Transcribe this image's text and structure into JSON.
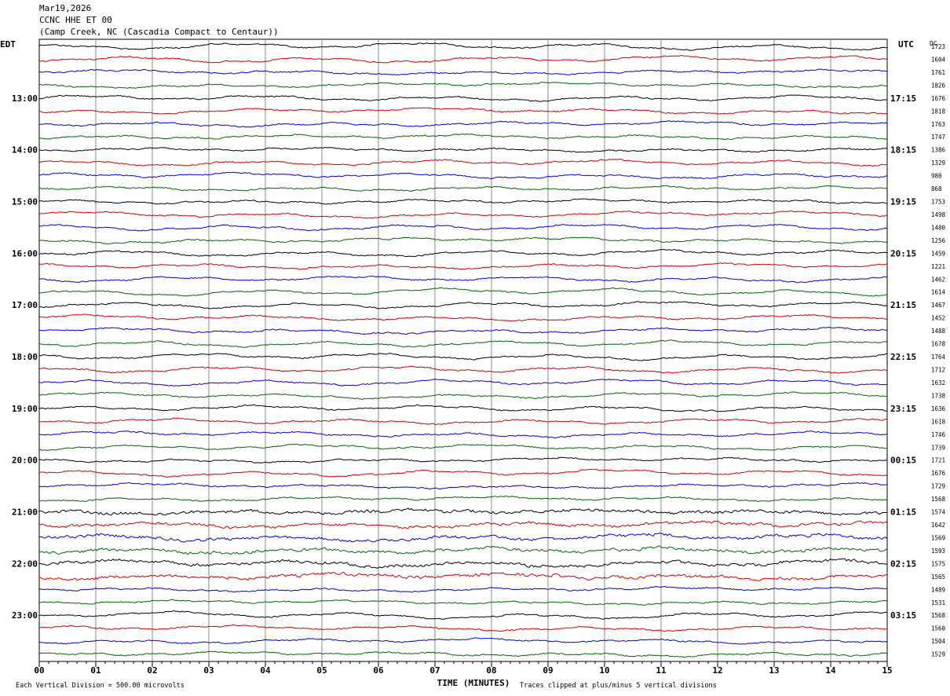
{
  "header": {
    "date": "Mar19,2026",
    "station": "CCNC HHE ET 00",
    "location": "(Camp Creek, NC (Cascadia Compact to Centaur))"
  },
  "chart_data": {
    "type": "line",
    "title": "CCNC HHE ET 00",
    "xlabel": "TIME (MINUTES)",
    "x_ticks": [
      "00",
      "01",
      "02",
      "03",
      "04",
      "05",
      "06",
      "07",
      "08",
      "09",
      "10",
      "11",
      "12",
      "13",
      "14",
      "15"
    ],
    "xlim": [
      0,
      15
    ],
    "left_axis_label": "EDT",
    "right_axis_label": "UTC",
    "dc_label": "DC",
    "left_time_labels": [
      "13:00",
      "14:00",
      "15:00",
      "16:00",
      "17:00",
      "18:00",
      "19:00",
      "20:00",
      "21:00",
      "22:00",
      "23:00"
    ],
    "right_time_labels": [
      "17:15",
      "18:15",
      "19:15",
      "20:15",
      "21:15",
      "22:15",
      "23:15",
      "00:15",
      "01:15",
      "02:15",
      "03:15"
    ],
    "dc_offsets": [
      1723,
      1604,
      1761,
      1826,
      1676,
      1818,
      1763,
      1747,
      1386,
      1329,
      980,
      868,
      1753,
      1498,
      1480,
      1256,
      1459,
      1221,
      1462,
      1614,
      1467,
      1452,
      1488,
      1678,
      1764,
      1712,
      1632,
      1738,
      1636,
      1618,
      1746,
      1739,
      1721,
      1676,
      1729,
      1568,
      1574,
      1642,
      1569,
      1593,
      1575,
      1565,
      1489,
      1531,
      1568,
      1560,
      1504,
      1529
    ],
    "trace_colors": [
      "#000000",
      "#cc0000",
      "#0000cc",
      "#006600"
    ],
    "footer_scale": "Each Vertical Division =  500.00 microvolts",
    "footer_clip": "Traces clipped at plus/minus 5 vertical divisions",
    "grid": true
  }
}
